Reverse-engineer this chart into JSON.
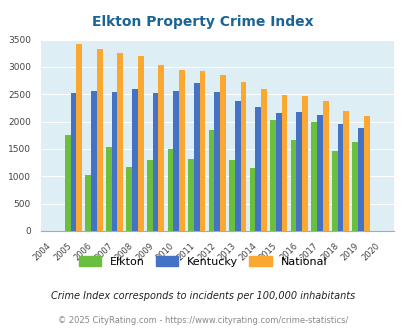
{
  "title": "Elkton Property Crime Index",
  "years": [
    2004,
    2005,
    2006,
    2007,
    2008,
    2009,
    2010,
    2011,
    2012,
    2013,
    2014,
    2015,
    2016,
    2017,
    2018,
    2019,
    2020
  ],
  "elkton": [
    0,
    1750,
    1020,
    1530,
    1175,
    1300,
    1500,
    1310,
    1840,
    1300,
    1145,
    2025,
    1660,
    2000,
    1460,
    1630,
    0
  ],
  "kentucky": [
    0,
    2530,
    2555,
    2535,
    2590,
    2530,
    2555,
    2700,
    2550,
    2380,
    2265,
    2165,
    2175,
    2130,
    1955,
    1890,
    0
  ],
  "national": [
    0,
    3420,
    3330,
    3255,
    3205,
    3030,
    2950,
    2920,
    2860,
    2720,
    2595,
    2490,
    2460,
    2380,
    2200,
    2110,
    0
  ],
  "elkton_color": "#6abf3e",
  "kentucky_color": "#4472c4",
  "national_color": "#faa832",
  "bg_color": "#ddeef5",
  "title_color": "#1a6496",
  "ylabel_max": 3500,
  "yticks": [
    0,
    500,
    1000,
    1500,
    2000,
    2500,
    3000,
    3500
  ],
  "subtitle": "Crime Index corresponds to incidents per 100,000 inhabitants",
  "footer": "© 2025 CityRating.com - https://www.cityrating.com/crime-statistics/",
  "legend_labels": [
    "Elkton",
    "Kentucky",
    "National"
  ]
}
